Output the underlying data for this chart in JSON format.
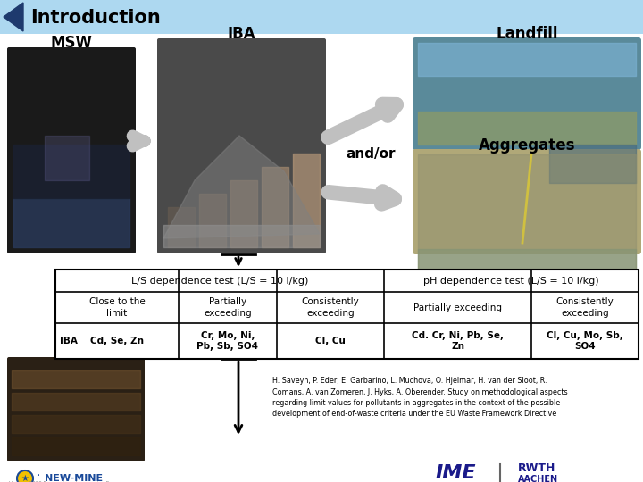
{
  "title": "Introduction",
  "title_bg_color": "#add8f0",
  "title_text_color": "#000000",
  "title_arrow_color": "#1e3a6e",
  "msw_label": "MSW",
  "iba_label": "IBA",
  "landfill_label": "Landfill",
  "andor_label": "and/or",
  "aggregates_label": "Aggregates",
  "table_header_ls": "L/S dependence test (L/S = 10 l/kg)",
  "table_header_ph": "pH dependence test (L/S = 10 l/kg)",
  "col1_header": "Close to the\nlimit",
  "col2_header": "Partially\nexceeding",
  "col3_header": "Consistently\nexceeding",
  "col4_header": "Partially exceeding",
  "col5_header": "Consistently\nexceeding",
  "iba_row_label": "IBA",
  "col1_val": "Cd, Se, Zn",
  "col2_val": "Cr, Mo, Ni,\nPb, Sb, SO4",
  "col3_val": "Cl, Cu",
  "col4_val": "Cd. Cr, Ni, Pb, Se,\nZn",
  "col5_val": "Cl, Cu, Mo, Sb,\nSO4",
  "reference_text": "H. Saveyn, P. Eder, E. Garbarino, L. Muchova, O. Hjelmar, H. van der Sloot, R.\nComans, A. van Zomeren, J. Hyks, A. Oberender. Study on methodological aspects\nregarding limit values for pollutants in aggregates in the context of the possible\ndevelopment of end-of-waste criteria under the EU Waste Framework Directive",
  "arrow_gray": "#b0b0b0",
  "newmine_color": "#1a4a9a",
  "ime_color": "#1a1a8a",
  "rwth_color": "#1a1a8a"
}
